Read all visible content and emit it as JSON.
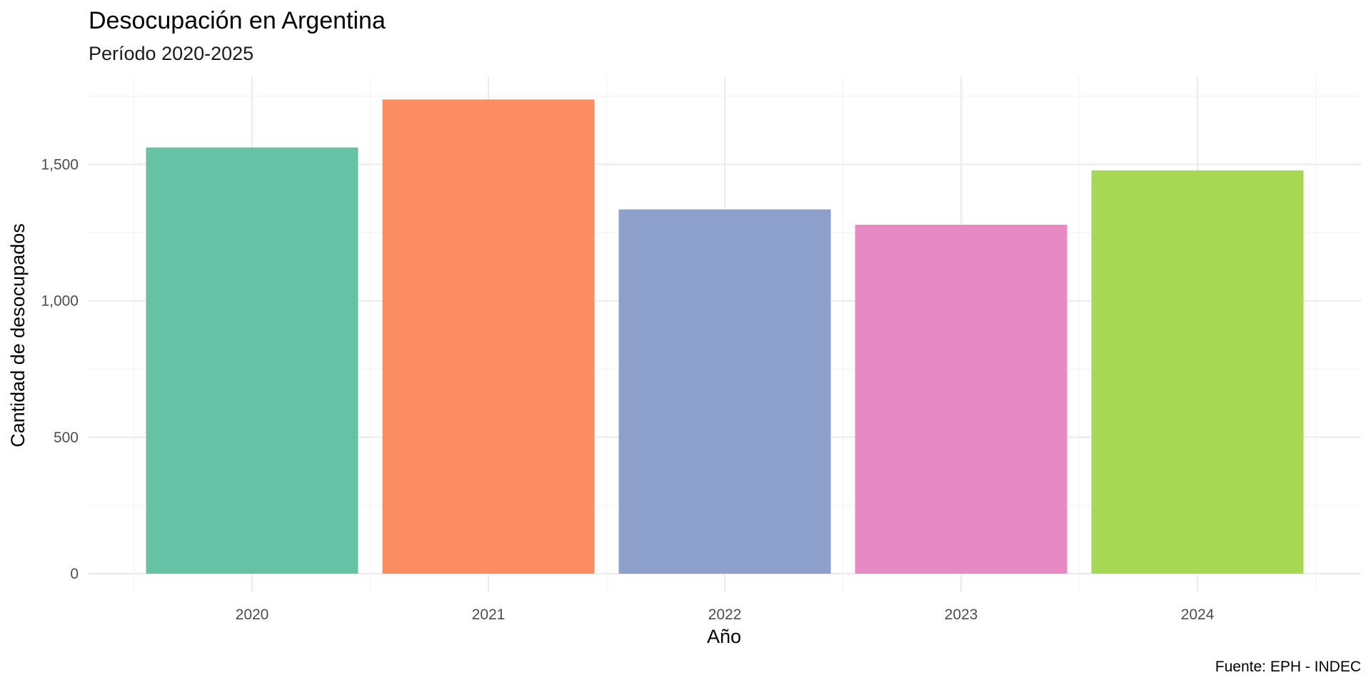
{
  "chart_data": {
    "type": "bar",
    "title": "Desocupación en Argentina",
    "subtitle": "Período 2020-2025",
    "xlabel": "Año",
    "ylabel": "Cantidad de desocupados",
    "caption": "Fuente: EPH - INDEC",
    "categories": [
      "2020",
      "2021",
      "2022",
      "2023",
      "2024"
    ],
    "values": [
      1562,
      1738,
      1335,
      1279,
      1478
    ],
    "colors": [
      "#66c2a5",
      "#fc8d62",
      "#8da0cb",
      "#e78ac3",
      "#a6d854"
    ],
    "ylim": [
      0,
      1750
    ],
    "yticks": [
      0,
      500,
      1000,
      1500
    ],
    "ytick_labels": [
      "0",
      "500",
      "1,000",
      "1,500"
    ],
    "grid": true,
    "legend": "none"
  }
}
